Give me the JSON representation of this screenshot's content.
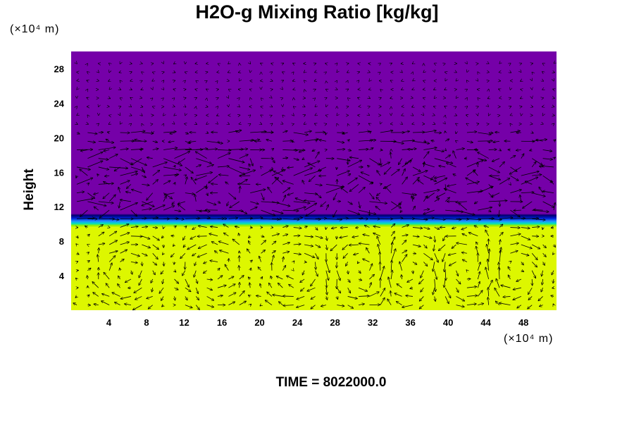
{
  "title": "H2O-g Mixing Ratio [kg/kg]",
  "time_label": "TIME = 8022000.0",
  "chart_data": {
    "type": "heatmap",
    "title": "H2O-g Mixing Ratio [kg/kg]",
    "xlabel": "",
    "ylabel": "Height",
    "x_unit": "(×10⁴ m)",
    "y_unit": "(×10⁴ m)",
    "xlim": [
      0,
      51.5
    ],
    "ylim": [
      0,
      30
    ],
    "x_ticks": [
      4,
      8,
      12,
      16,
      20,
      24,
      28,
      32,
      36,
      40,
      44,
      48
    ],
    "y_ticks": [
      4,
      8,
      12,
      16,
      20,
      24,
      28
    ],
    "fields": {
      "lower_layer": {
        "y_range": [
          0,
          9.6
        ],
        "color": "#ddf700"
      },
      "transition": {
        "y_range": [
          9.6,
          11.2
        ],
        "colors": [
          "#99f000",
          "#00c8e0",
          "#1060ff",
          "#0010b0",
          "#000080"
        ]
      },
      "upper_layer": {
        "y_range": [
          11.2,
          30
        ],
        "color": "#7500a8"
      }
    },
    "vector_field": "wind arrows overlaid, circulation cells below 10, disturbed flow 11-21, weak above 21"
  }
}
